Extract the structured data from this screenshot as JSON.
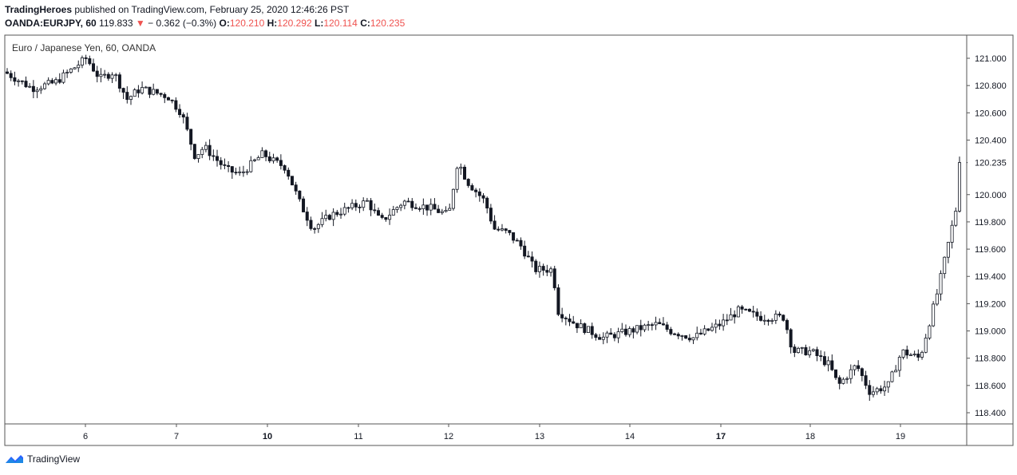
{
  "header": {
    "publisher": "TradingHeroes",
    "published_text": "published on TradingView.com, February 25, 2020 12:46:26 PST",
    "ticker": "OANDA:EURJPY, 60",
    "last": "119.833",
    "change": "− 0.362 (−0.3%)",
    "open_label": "O:",
    "open": "120.210",
    "high_label": "H:",
    "high": "120.292",
    "low_label": "L:",
    "low": "120.114",
    "close_label": "C:",
    "close": "120.235"
  },
  "footer": {
    "brand": "TradingView"
  },
  "colors": {
    "candle": "#131722",
    "down": "#ef5350",
    "axis": "#555555",
    "price_tag": "#131722"
  },
  "chart_data": {
    "type": "candlestick",
    "title": "Euro / Japanese Yen, 60, OANDA",
    "y_ticks": [
      "121.000",
      "120.800",
      "120.600",
      "120.400",
      "120.000",
      "119.800",
      "119.600",
      "119.400",
      "119.200",
      "119.000",
      "118.800",
      "118.600",
      "118.400"
    ],
    "y_range": [
      118.3,
      121.1
    ],
    "last_price_label": "120.235",
    "last_price": 120.235,
    "x_ticks": [
      "6",
      "7",
      "10",
      "11",
      "12",
      "13",
      "14",
      "17",
      "18",
      "19"
    ],
    "bold_x_ticks": [
      "10",
      "17"
    ],
    "close_path": [
      [
        0.0,
        120.9
      ],
      [
        0.3,
        120.78
      ],
      [
        0.55,
        120.82
      ],
      [
        0.9,
        121.0
      ],
      [
        1.05,
        120.85
      ],
      [
        1.2,
        120.9
      ],
      [
        1.35,
        120.7
      ],
      [
        1.5,
        120.78
      ],
      [
        1.8,
        120.72
      ],
      [
        1.95,
        120.6
      ],
      [
        2.1,
        120.28
      ],
      [
        2.2,
        120.35
      ],
      [
        2.45,
        120.18
      ],
      [
        2.6,
        120.15
      ],
      [
        2.85,
        120.3
      ],
      [
        2.95,
        120.25
      ],
      [
        3.1,
        120.2
      ],
      [
        3.25,
        119.95
      ],
      [
        3.4,
        119.75
      ],
      [
        3.6,
        119.85
      ],
      [
        3.8,
        119.9
      ],
      [
        4.0,
        119.95
      ],
      [
        4.15,
        119.8
      ],
      [
        4.4,
        119.95
      ],
      [
        4.7,
        119.9
      ],
      [
        4.9,
        119.85
      ],
      [
        5.0,
        120.25
      ],
      [
        5.1,
        120.1
      ],
      [
        5.3,
        119.95
      ],
      [
        5.4,
        119.75
      ],
      [
        5.55,
        119.72
      ],
      [
        5.7,
        119.62
      ],
      [
        5.85,
        119.45
      ],
      [
        6.05,
        119.45
      ],
      [
        6.1,
        119.15
      ],
      [
        6.3,
        119.05
      ],
      [
        6.6,
        118.95
      ],
      [
        6.9,
        119.0
      ],
      [
        7.2,
        119.05
      ],
      [
        7.35,
        119.0
      ],
      [
        7.6,
        118.95
      ],
      [
        7.9,
        119.05
      ],
      [
        8.1,
        119.15
      ],
      [
        8.35,
        119.1
      ],
      [
        8.6,
        119.1
      ],
      [
        8.7,
        118.85
      ],
      [
        8.9,
        118.85
      ],
      [
        9.1,
        118.75
      ],
      [
        9.2,
        118.6
      ],
      [
        9.4,
        118.75
      ],
      [
        9.55,
        118.55
      ],
      [
        9.75,
        118.6
      ],
      [
        9.9,
        118.85
      ],
      [
        10.1,
        118.8
      ],
      [
        10.2,
        119.05
      ],
      [
        10.3,
        119.3
      ],
      [
        10.4,
        119.6
      ],
      [
        10.5,
        119.9
      ],
      [
        10.6,
        120.15
      ],
      [
        10.7,
        120.45
      ],
      [
        10.85,
        120.3
      ],
      [
        10.95,
        120.24
      ]
    ]
  }
}
